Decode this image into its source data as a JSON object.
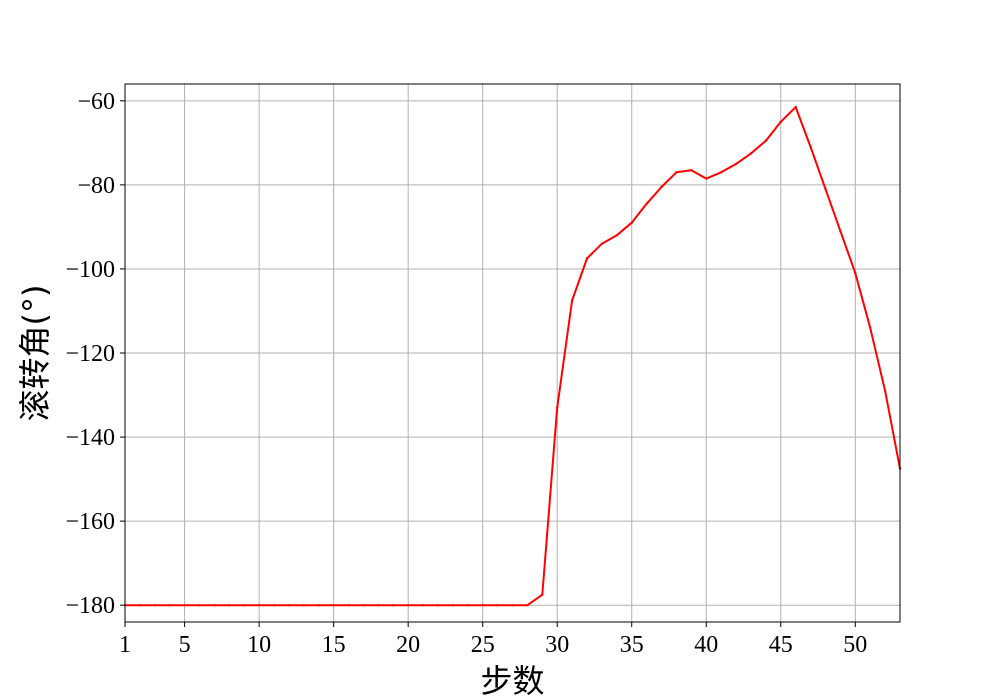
{
  "chart_data": {
    "type": "line",
    "title": "",
    "xlabel": "步数",
    "ylabel": "滚转角(°)",
    "xlim": [
      1,
      53
    ],
    "ylim": [
      -184,
      -56
    ],
    "xticks": [
      1,
      5,
      10,
      15,
      20,
      25,
      30,
      35,
      40,
      45,
      50
    ],
    "yticks": [
      -180,
      -160,
      -140,
      -120,
      -100,
      -80,
      -60
    ],
    "grid": true,
    "legend": "none",
    "series": [
      {
        "color": "#ff0000",
        "x": [
          1,
          2,
          3,
          4,
          5,
          6,
          7,
          8,
          9,
          10,
          11,
          12,
          13,
          14,
          15,
          16,
          17,
          18,
          19,
          20,
          21,
          22,
          23,
          24,
          25,
          26,
          27,
          28,
          29,
          30,
          31,
          32,
          33,
          34,
          35,
          36,
          37,
          38,
          39,
          40,
          41,
          42,
          43,
          44,
          45,
          46,
          47,
          48,
          49,
          50,
          51,
          52,
          53
        ],
        "y": [
          -180,
          -180,
          -180,
          -180,
          -180,
          -180,
          -180,
          -180,
          -180,
          -180,
          -180,
          -180,
          -180,
          -180,
          -180,
          -180,
          -180,
          -180,
          -180,
          -180,
          -180,
          -180,
          -180,
          -180,
          -180,
          -180,
          -180,
          -180,
          -177.5,
          -133,
          -107.5,
          -97.5,
          -94,
          -92,
          -89,
          -84.5,
          -80.5,
          -77,
          -76.5,
          -78.5,
          -77,
          -75,
          -72.5,
          -69.5,
          -65,
          -61.5,
          -71,
          -81,
          -91,
          -101,
          -114,
          -129,
          -147.5
        ]
      }
    ]
  }
}
